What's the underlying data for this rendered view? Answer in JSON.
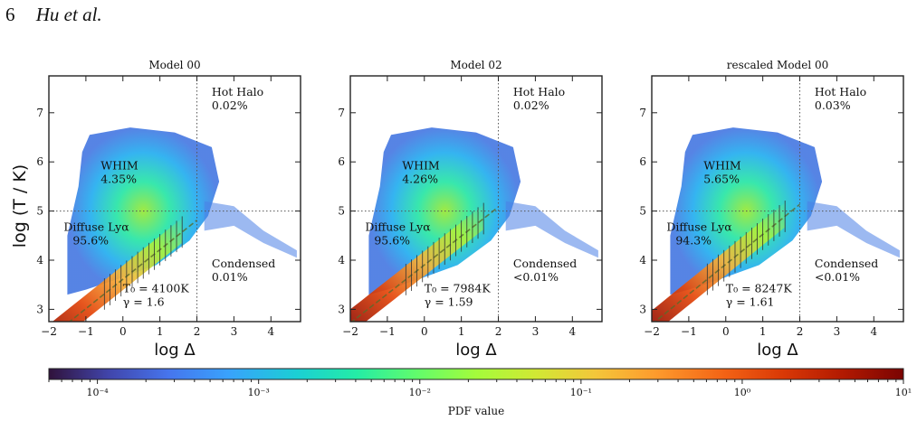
{
  "page_number": "6",
  "running_author": "Hu et al.",
  "y_axis_label": "log (T / K)",
  "x_axis_label": "log Δ",
  "colorbar_label": "PDF value",
  "colorbar_tick_labels": [
    "10⁻⁴",
    "10⁻³",
    "10⁻²",
    "10⁻¹",
    "10⁰",
    "10¹"
  ],
  "chart_data": [
    {
      "type": "heatmap",
      "title": "Model 00",
      "xlim": [
        -2,
        4.8
      ],
      "ylim": [
        2.75,
        7.75
      ],
      "xticks": [
        -2,
        -1,
        0,
        1,
        2,
        3,
        4
      ],
      "yticks": [
        3,
        4,
        5,
        6,
        7
      ],
      "divider_x": 2.0,
      "divider_y": 5.0,
      "phases": [
        {
          "name": "Hot Halo",
          "fraction": "0.02%"
        },
        {
          "name": "WHIM",
          "fraction": "4.35%"
        },
        {
          "name": "Diffuse Lyα",
          "fraction": "95.6%"
        },
        {
          "name": "Condensed",
          "fraction": "0.01%"
        }
      ],
      "fit": {
        "T0_label": "T₀ = 4100K",
        "gamma_label": "γ = 1.6",
        "T0": 4100,
        "gamma": 1.6
      }
    },
    {
      "type": "heatmap",
      "title": "Model 02",
      "xlim": [
        -2,
        4.8
      ],
      "ylim": [
        2.75,
        7.75
      ],
      "xticks": [
        -2,
        -1,
        0,
        1,
        2,
        3,
        4
      ],
      "yticks": [
        3,
        4,
        5,
        6,
        7
      ],
      "divider_x": 2.0,
      "divider_y": 5.0,
      "phases": [
        {
          "name": "Hot Halo",
          "fraction": "0.02%"
        },
        {
          "name": "WHIM",
          "fraction": "4.26%"
        },
        {
          "name": "Diffuse Lyα",
          "fraction": "95.6%"
        },
        {
          "name": "Condensed",
          "fraction": "<0.01%"
        }
      ],
      "fit": {
        "T0_label": "T₀ = 7984K",
        "gamma_label": "γ = 1.59",
        "T0": 7984,
        "gamma": 1.59
      }
    },
    {
      "type": "heatmap",
      "title": "rescaled Model 00",
      "xlim": [
        -2,
        4.8
      ],
      "ylim": [
        2.75,
        7.75
      ],
      "xticks": [
        -2,
        -1,
        0,
        1,
        2,
        3,
        4
      ],
      "yticks": [
        3,
        4,
        5,
        6,
        7
      ],
      "divider_x": 2.0,
      "divider_y": 5.0,
      "phases": [
        {
          "name": "Hot Halo",
          "fraction": "0.03%"
        },
        {
          "name": "WHIM",
          "fraction": "5.65%"
        },
        {
          "name": "Diffuse Lyα",
          "fraction": "94.3%"
        },
        {
          "name": "Condensed",
          "fraction": "<0.01%"
        }
      ],
      "fit": {
        "T0_label": "T₀ = 8247K",
        "gamma_label": "γ = 1.61",
        "T0": 8247,
        "gamma": 1.61
      }
    }
  ],
  "colorbar": {
    "min": 5e-05,
    "max": 10,
    "scale": "log",
    "colormap": "turbo"
  }
}
